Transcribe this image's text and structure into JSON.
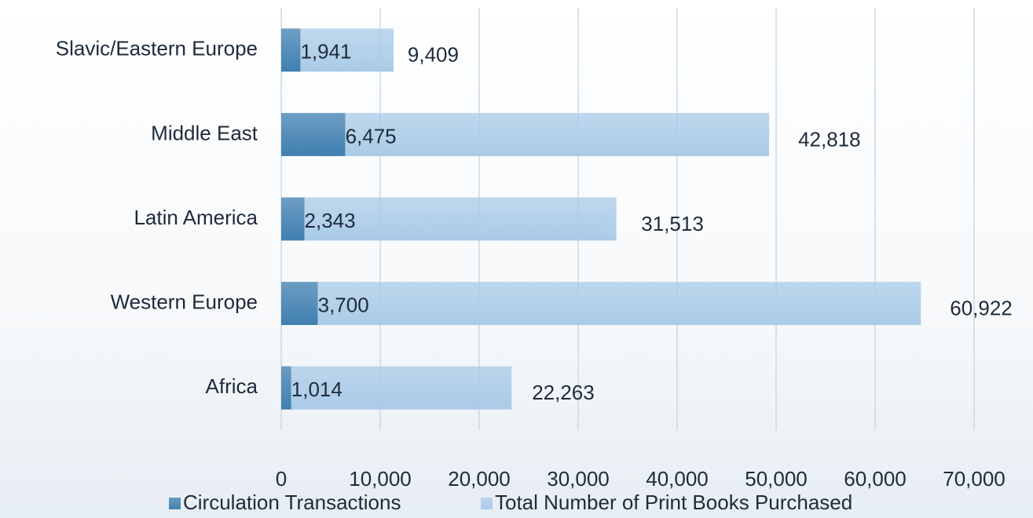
{
  "chart_data": {
    "type": "stacked-bar-horizontal",
    "categories": [
      "Slavic/Eastern Europe",
      "Middle East",
      "Latin America",
      "Western Europe",
      "Africa"
    ],
    "series": [
      {
        "name": "Circulation Transactions",
        "color": "#3f7fb0",
        "values": [
          1941,
          6475,
          2343,
          3700,
          1014
        ],
        "value_labels": [
          "1,941",
          "6,475",
          "2,343",
          "3,700",
          "1,014"
        ]
      },
      {
        "name": "Total Number of Print Books Purchased",
        "color": "#aacbe7",
        "values": [
          9409,
          42818,
          31513,
          60922,
          22263
        ],
        "value_labels": [
          "9,409",
          "42,818",
          "31,513",
          "60,922",
          "22,263"
        ]
      }
    ],
    "xlim": [
      0,
      70000
    ],
    "xticks": [
      0,
      {
        "value": 10000,
        "label": "10,000"
      },
      {
        "value": 20000,
        "label": "20,000"
      },
      {
        "value": 30000,
        "label": "30,000"
      },
      {
        "value": 40000,
        "label": "40,000"
      },
      {
        "value": 50000,
        "label": "50,000"
      },
      {
        "value": 60000,
        "label": "60,000"
      },
      {
        "value": 70000,
        "label": "70,000"
      }
    ],
    "grid": true,
    "legend": "bottom"
  }
}
